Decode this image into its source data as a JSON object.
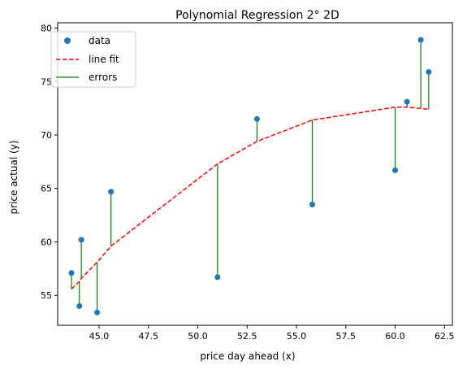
{
  "chart_data": {
    "type": "scatter",
    "title": "Polynomial Regression 2° 2D",
    "xlabel": "price day ahead (x)",
    "ylabel": "price actual (y)",
    "xlim": [
      42.9,
      62.9
    ],
    "ylim": [
      52.2,
      80.5
    ],
    "xticks": [
      45.0,
      47.5,
      50.0,
      52.5,
      55.0,
      57.5,
      60.0,
      62.5
    ],
    "xtick_labels": [
      "45.0",
      "47.5",
      "50.0",
      "52.5",
      "55.0",
      "57.5",
      "60.0",
      "62.5"
    ],
    "yticks": [
      55,
      60,
      65,
      70,
      75,
      80
    ],
    "ytick_labels": [
      "55",
      "60",
      "65",
      "70",
      "75",
      "80"
    ],
    "grid": false,
    "legend_position": "top-left",
    "series": [
      {
        "name": "data",
        "kind": "scatter",
        "color": "#1f77b4",
        "points": [
          {
            "x": 43.6,
            "y": 57.1
          },
          {
            "x": 44.0,
            "y": 54.0
          },
          {
            "x": 44.1,
            "y": 60.2
          },
          {
            "x": 44.9,
            "y": 53.4
          },
          {
            "x": 45.6,
            "y": 64.7
          },
          {
            "x": 51.0,
            "y": 56.7
          },
          {
            "x": 53.0,
            "y": 71.5
          },
          {
            "x": 55.8,
            "y": 63.5
          },
          {
            "x": 60.0,
            "y": 66.7
          },
          {
            "x": 60.6,
            "y": 73.1
          },
          {
            "x": 61.3,
            "y": 78.9
          },
          {
            "x": 61.7,
            "y": 75.9
          }
        ]
      },
      {
        "name": "line fit",
        "kind": "line",
        "style": "dashed",
        "color": "#ff0000",
        "points": [
          {
            "x": 43.6,
            "y": 55.6
          },
          {
            "x": 44.0,
            "y": 56.3
          },
          {
            "x": 44.1,
            "y": 56.6
          },
          {
            "x": 44.9,
            "y": 58.1
          },
          {
            "x": 45.6,
            "y": 59.6
          },
          {
            "x": 51.0,
            "y": 67.3
          },
          {
            "x": 53.0,
            "y": 69.4
          },
          {
            "x": 55.8,
            "y": 71.4
          },
          {
            "x": 60.0,
            "y": 72.6
          },
          {
            "x": 60.6,
            "y": 72.6
          },
          {
            "x": 61.3,
            "y": 72.5
          },
          {
            "x": 61.7,
            "y": 72.4
          }
        ]
      },
      {
        "name": "errors",
        "kind": "errors",
        "color": "#008000"
      }
    ]
  }
}
